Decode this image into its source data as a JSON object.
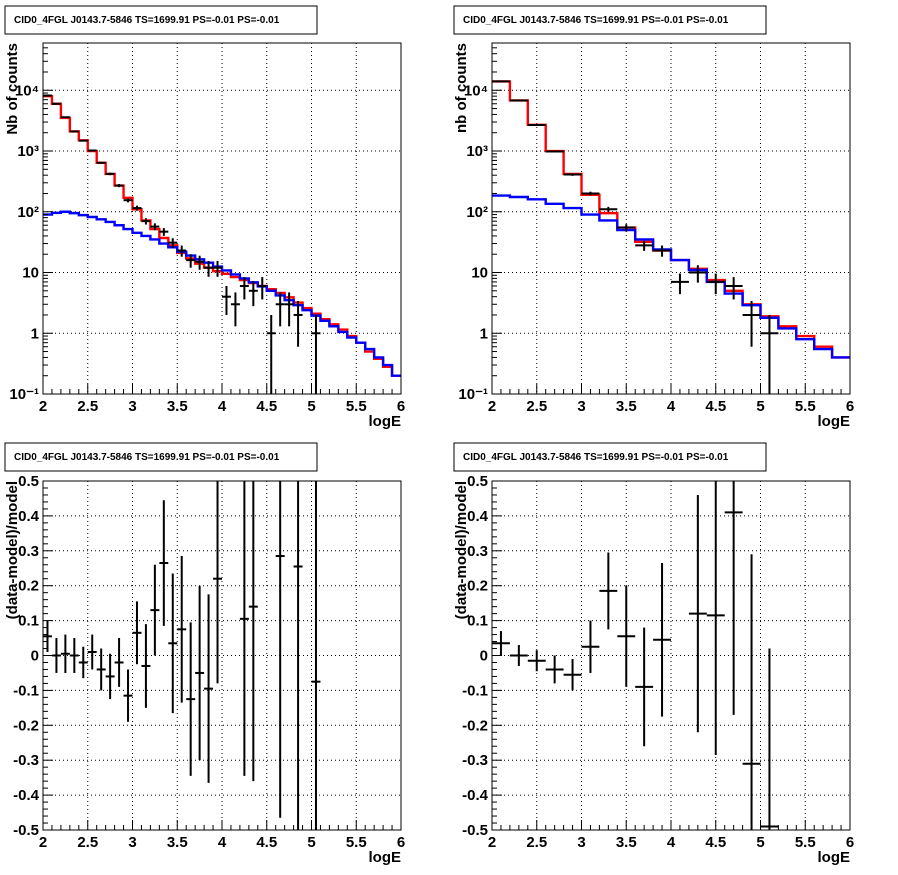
{
  "chart_data": [
    {
      "type": "line",
      "title": "CID0_4FGL J0143.7-5846 TS=1699.91 PS=-0.01 PS=-0.01",
      "xlabel": "logE",
      "ylabel": "Nb of counts",
      "yscale": "log",
      "xlim": [
        2,
        6
      ],
      "ylim": [
        0.1,
        60000
      ],
      "grid": true,
      "x_tick_labels": [
        "2",
        "2.5",
        "3",
        "3.5",
        "4",
        "4.5",
        "5",
        "5.5",
        "6"
      ],
      "y_tick_labels": [
        "10⁻¹",
        "1",
        "10",
        "10²",
        "10³",
        "10⁴"
      ],
      "series": [
        {
          "style": "step",
          "color": "#ff0000",
          "bin_edges": [
            2.0,
            2.1,
            2.2,
            2.3,
            2.4,
            2.5,
            2.6,
            2.7,
            2.8,
            2.9,
            3.0,
            3.1,
            3.2,
            3.3,
            3.4,
            3.5,
            3.6,
            3.7,
            3.8,
            3.9,
            4.0,
            4.1,
            4.2,
            4.3,
            4.4,
            4.5,
            4.6,
            4.7,
            4.8,
            4.9,
            5.0,
            5.1,
            5.2,
            5.3,
            5.4,
            5.5,
            5.6,
            5.7,
            5.8,
            5.9,
            6.0
          ],
          "values": [
            8000,
            6000,
            3500,
            2100,
            1500,
            1000,
            640,
            420,
            270,
            170,
            110,
            72,
            52,
            37,
            28,
            21,
            17,
            14,
            12,
            10.5,
            9.5,
            8.4,
            7.5,
            6.7,
            6.0,
            5.3,
            4.6,
            3.9,
            3.2,
            2.6,
            2.1,
            1.7,
            1.4,
            1.15,
            0.9,
            0.7,
            0.5,
            0.38,
            0.28,
            0.2
          ]
        },
        {
          "style": "step",
          "color": "#0000ff",
          "bin_edges": [
            2.0,
            2.1,
            2.2,
            2.3,
            2.4,
            2.5,
            2.6,
            2.7,
            2.8,
            2.9,
            3.0,
            3.1,
            3.2,
            3.3,
            3.4,
            3.5,
            3.6,
            3.7,
            3.8,
            3.9,
            4.0,
            4.1,
            4.2,
            4.3,
            4.4,
            4.5,
            4.6,
            4.7,
            4.8,
            4.9,
            5.0,
            5.1,
            5.2,
            5.3,
            5.4,
            5.5,
            5.6,
            5.7,
            5.8,
            5.9,
            6.0
          ],
          "values": [
            90,
            96,
            100,
            95,
            88,
            82,
            75,
            68,
            60,
            52,
            45,
            40,
            35,
            30,
            26,
            22,
            19,
            16.5,
            14.5,
            12.5,
            10.8,
            9.3,
            8.0,
            6.9,
            5.9,
            5.0,
            4.2,
            3.5,
            2.9,
            2.4,
            1.95,
            1.6,
            1.3,
            1.05,
            0.85,
            0.7,
            0.55,
            0.4,
            0.3,
            0.2
          ]
        },
        {
          "style": "errorbar",
          "color": "#000000",
          "x": [
            2.05,
            2.15,
            2.25,
            2.35,
            2.45,
            2.55,
            2.65,
            2.75,
            2.85,
            2.95,
            3.05,
            3.15,
            3.25,
            3.35,
            3.45,
            3.55,
            3.65,
            3.75,
            3.85,
            3.95,
            4.05,
            4.15,
            4.25,
            4.35,
            4.45,
            4.55,
            4.65,
            4.75,
            4.85,
            4.95,
            5.05
          ],
          "y": [
            8200,
            6000,
            3600,
            2100,
            1480,
            1020,
            640,
            420,
            270,
            155,
            115,
            70,
            57,
            47,
            31,
            23,
            16,
            15,
            12,
            12,
            4,
            3,
            6,
            5,
            6,
            1,
            3,
            3,
            2,
            0,
            1
          ],
          "yerr": [
            90,
            77,
            60,
            46,
            38,
            32,
            25,
            20,
            16,
            12,
            11,
            8.4,
            7.5,
            6.9,
            5.6,
            4.8,
            4,
            3.9,
            3.5,
            3.5,
            2,
            1.7,
            2.4,
            2.2,
            2.4,
            1,
            1.7,
            1.7,
            1.4,
            0,
            1
          ]
        }
      ]
    },
    {
      "type": "line",
      "title": "CID0_4FGL J0143.7-5846 TS=1699.91 PS=-0.01 PS=-0.01",
      "xlabel": "logE",
      "ylabel": "nb of counts",
      "yscale": "log",
      "xlim": [
        2,
        6
      ],
      "ylim": [
        0.1,
        60000
      ],
      "grid": true,
      "x_tick_labels": [
        "2",
        "2.5",
        "3",
        "3.5",
        "4",
        "4.5",
        "5",
        "5.5",
        "6"
      ],
      "y_tick_labels": [
        "10⁻¹",
        "1",
        "10",
        "10²",
        "10³",
        "10⁴"
      ],
      "series": [
        {
          "style": "step",
          "color": "#ff0000",
          "bin_edges": [
            2.0,
            2.2,
            2.4,
            2.6,
            2.8,
            3.0,
            3.2,
            3.4,
            3.6,
            3.8,
            4.0,
            4.2,
            4.4,
            4.6,
            4.8,
            5.0,
            5.2,
            5.4,
            5.6,
            5.8,
            6.0
          ],
          "values": [
            14000,
            6800,
            2700,
            1000,
            420,
            190,
            95,
            55,
            32,
            23,
            16,
            11.5,
            7.5,
            5,
            3,
            1.9,
            1.3,
            0.9,
            0.6,
            0.4
          ]
        },
        {
          "style": "step",
          "color": "#0000ff",
          "bin_edges": [
            2.0,
            2.2,
            2.4,
            2.6,
            2.8,
            3.0,
            3.2,
            3.4,
            3.6,
            3.8,
            4.0,
            4.2,
            4.4,
            4.6,
            4.8,
            5.0,
            5.2,
            5.4,
            5.6,
            5.8,
            6.0
          ],
          "values": [
            185,
            175,
            160,
            135,
            115,
            90,
            72,
            50,
            35,
            24,
            16,
            11,
            7,
            4.5,
            2.9,
            1.8,
            1.2,
            0.8,
            0.55,
            0.4
          ]
        },
        {
          "style": "errorbar",
          "color": "#000000",
          "x": [
            2.1,
            2.3,
            2.5,
            2.7,
            2.9,
            3.1,
            3.3,
            3.5,
            3.7,
            3.9,
            4.1,
            4.3,
            4.5,
            4.7,
            4.9,
            5.1
          ],
          "y": [
            14000,
            6800,
            2680,
            980,
            410,
            200,
            110,
            55,
            28,
            23,
            7,
            10,
            7,
            6,
            2,
            1
          ],
          "yerr": [
            118,
            82,
            52,
            31,
            20,
            14,
            10.5,
            7.4,
            5.3,
            4.8,
            2.6,
            3.2,
            2.6,
            2.4,
            1.4,
            1
          ]
        }
      ]
    },
    {
      "type": "scatter",
      "title": "CID0_4FGL J0143.7-5846 TS=1699.91 PS=-0.01 PS=-0.01",
      "xlabel": "logE",
      "ylabel": "(data-model)/model",
      "xlim": [
        2,
        6
      ],
      "ylim": [
        -0.5,
        0.5
      ],
      "grid": true,
      "x_tick_labels": [
        "2",
        "2.5",
        "3",
        "3.5",
        "4",
        "4.5",
        "5",
        "5.5",
        "6"
      ],
      "y_tick_labels": [
        "-0.5",
        "-0.4",
        "-0.3",
        "-0.2",
        "-0.1",
        "0",
        "0.1",
        "0.2",
        "0.3",
        "0.4",
        "0.5"
      ],
      "series": [
        {
          "style": "errorbar",
          "color": "#000000",
          "x": [
            2.05,
            2.15,
            2.25,
            2.35,
            2.45,
            2.55,
            2.65,
            2.75,
            2.85,
            2.95,
            3.05,
            3.15,
            3.25,
            3.35,
            3.45,
            3.55,
            3.65,
            3.75,
            3.85,
            3.95,
            4.25,
            4.35,
            4.65,
            4.85,
            5.05
          ],
          "y": [
            0.055,
            0.0,
            0.005,
            0.0,
            -0.02,
            0.01,
            -0.04,
            -0.06,
            -0.02,
            -0.115,
            0.065,
            -0.03,
            0.13,
            0.265,
            0.035,
            0.075,
            -0.125,
            -0.05,
            -0.095,
            0.22,
            0.105,
            0.14,
            0.285,
            0.255,
            -0.075
          ],
          "yerr": [
            0.045,
            0.05,
            0.055,
            0.05,
            0.045,
            0.05,
            0.06,
            0.065,
            0.07,
            0.075,
            0.09,
            0.12,
            0.13,
            0.18,
            0.2,
            0.21,
            0.22,
            0.25,
            0.27,
            0.3,
            0.45,
            0.5,
            0.75,
            0.8,
            0.9
          ]
        }
      ]
    },
    {
      "type": "scatter",
      "title": "CID0_4FGL J0143.7-5846 TS=1699.91 PS=-0.01 PS=-0.01",
      "xlabel": "logE",
      "ylabel": "(data-model)/model",
      "xlim": [
        2,
        6
      ],
      "ylim": [
        -0.5,
        0.5
      ],
      "grid": true,
      "x_tick_labels": [
        "2",
        "2.5",
        "3",
        "3.5",
        "4",
        "4.5",
        "5",
        "5.5",
        "6"
      ],
      "y_tick_labels": [
        "-0.5",
        "-0.4",
        "-0.3",
        "-0.2",
        "-0.1",
        "0",
        "0.1",
        "0.2",
        "0.3",
        "0.4",
        "0.5"
      ],
      "series": [
        {
          "style": "errorbar",
          "color": "#000000",
          "x": [
            2.1,
            2.3,
            2.5,
            2.7,
            2.9,
            3.1,
            3.3,
            3.5,
            3.7,
            3.9,
            4.3,
            4.5,
            4.7,
            4.9,
            5.1
          ],
          "y": [
            0.035,
            0.0,
            -0.015,
            -0.04,
            -0.055,
            0.025,
            0.185,
            0.055,
            -0.09,
            0.045,
            0.12,
            0.115,
            0.41,
            -0.31,
            -0.49
          ],
          "yerr": [
            0.035,
            0.03,
            0.03,
            0.04,
            0.045,
            0.075,
            0.11,
            0.145,
            0.17,
            0.22,
            0.34,
            0.4,
            0.58,
            0.6,
            0.51
          ]
        }
      ]
    }
  ]
}
